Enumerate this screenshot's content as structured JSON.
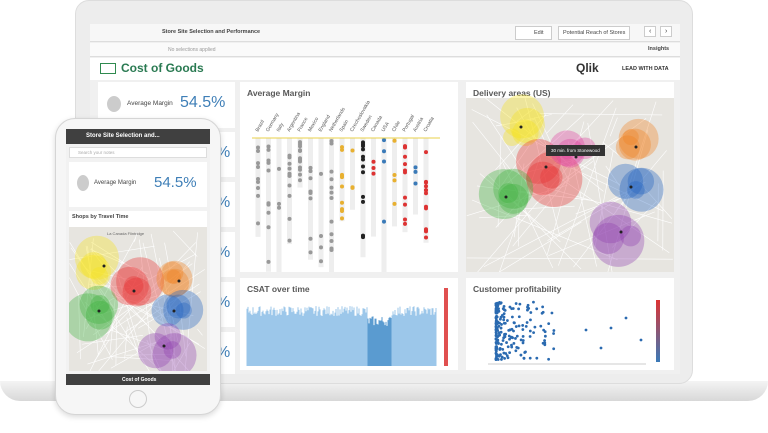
{
  "toolbar": {
    "app_title": "Store Site Selection and Performance",
    "edit": "Edit",
    "sheet": "Potential Reach of Stores",
    "insights": "Insights",
    "selections": "No selections applied"
  },
  "header": {
    "title": "Cost of Goods",
    "brand": "Qlik",
    "tagline": "LEAD WITH DATA"
  },
  "kpi": {
    "label": "Average Margin",
    "value": "54.5%"
  },
  "kpi_fragments": [
    "%",
    "%",
    "%",
    "%",
    "%"
  ],
  "panels": {
    "average_margin": {
      "title": "Average Margin",
      "columns": [
        "Brazil",
        "Germany",
        "Italy",
        "Argentina",
        "France",
        "Mexico",
        "England",
        "Netherlands",
        "Spain",
        "Czechoslovakia",
        "Sweden",
        "Canada",
        "USA",
        "Chile",
        "Portugal",
        "Austria",
        "Croatia"
      ]
    },
    "delivery": {
      "title": "Delivery areas (US)",
      "tooltip": "30 min. from Stonewood"
    },
    "csat": {
      "title": "CSAT over time"
    },
    "profitability": {
      "title": "Customer profitability"
    }
  },
  "phone": {
    "app_title": "Store Site Selection and...",
    "search": "Search your notes",
    "kpi_label": "Average Margin",
    "kpi_value": "54.5%",
    "map_title": "Shops by Travel Time",
    "map_place": "La Canada Flintridge",
    "footer": "Cost of Goods"
  }
}
